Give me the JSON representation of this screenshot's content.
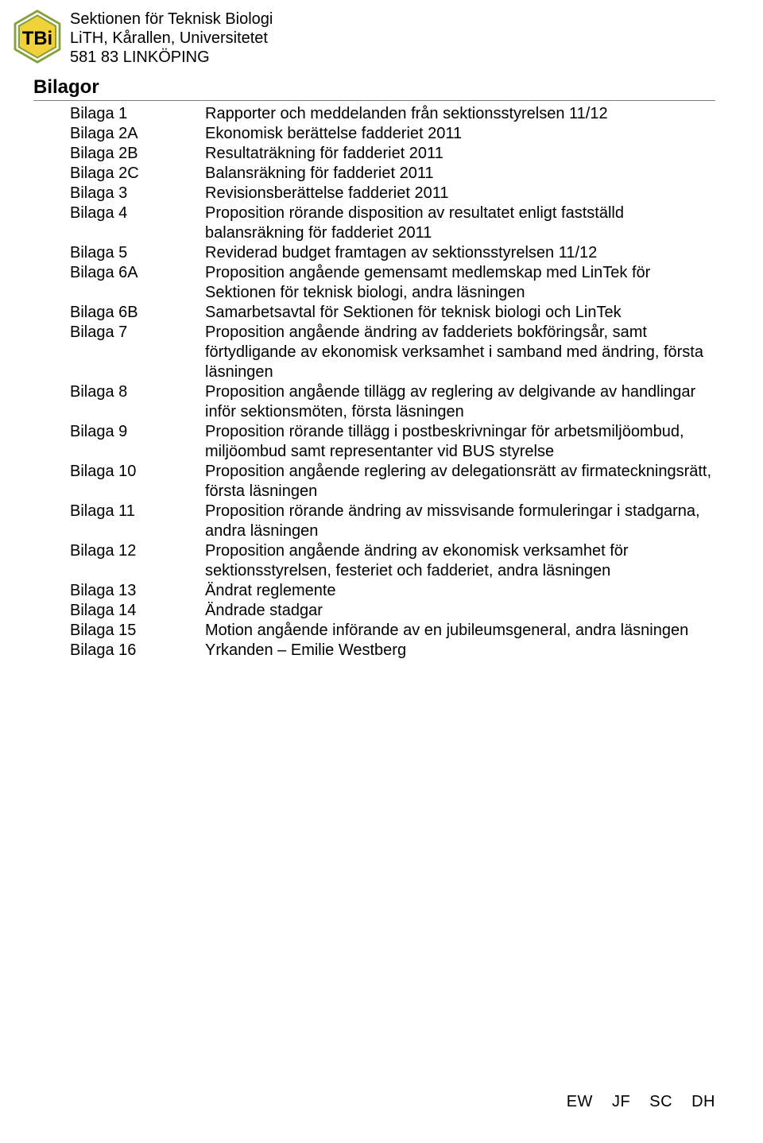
{
  "header": {
    "org_lines": [
      "Sektionen för Teknisk Biologi",
      "LiTH, Kårallen, Universitetet",
      "581 83 LINKÖPING"
    ],
    "logo": {
      "outer_stroke": "#85a03a",
      "hex_fill": "#f2d23a",
      "hex_stroke": "#85a03a",
      "letters_fill": "#000000",
      "background": "#ffffff"
    }
  },
  "section_title": "Bilagor",
  "items": [
    {
      "label": "Bilaga 1",
      "desc": "Rapporter och meddelanden från sektionsstyrelsen 11/12",
      "desc_bold": false
    },
    {
      "label": "Bilaga 2A",
      "desc": "Ekonomisk berättelse fadderiet 2011",
      "desc_bold": false
    },
    {
      "label": "Bilaga 2B",
      "desc": "Resultaträkning för fadderiet 2011",
      "desc_bold": false
    },
    {
      "label": "Bilaga 2C",
      "desc": "Balansräkning för fadderiet 2011",
      "desc_bold": false
    },
    {
      "label": "Bilaga 3",
      "desc": "Revisionsberättelse fadderiet 2011",
      "desc_bold": false
    },
    {
      "label": "Bilaga 4",
      "desc": "Proposition rörande disposition av resultatet enligt fastställd balansräkning för fadderiet 2011",
      "desc_bold": false
    },
    {
      "label": "Bilaga 5",
      "desc": "Reviderad budget framtagen av sektionsstyrelsen 11/12",
      "desc_bold": false
    },
    {
      "label": "Bilaga 6A",
      "desc": "Proposition angående gemensamt medlemskap med LinTek för Sektionen för teknisk biologi, andra läsningen",
      "desc_bold": false
    },
    {
      "label": "Bilaga 6B",
      "desc": "Samarbetsavtal för Sektionen för teknisk biologi och LinTek",
      "desc_bold": false
    },
    {
      "label": "Bilaga 7",
      "desc": "Proposition angående ändring av fadderiets bokföringsår, samt förtydligande av ekonomisk verksamhet i samband med ändring, första läsningen",
      "desc_bold": false
    },
    {
      "label": "Bilaga 8",
      "desc": "Proposition angående tillägg av reglering av delgivande av handlingar inför sektionsmöten, första läsningen",
      "desc_bold": false
    },
    {
      "label": "Bilaga 9",
      "desc": "Proposition rörande tillägg i postbeskrivningar för arbetsmiljöombud, miljöombud samt representanter vid BUS styrelse",
      "desc_bold": false
    },
    {
      "label": "Bilaga 10",
      "desc": "Proposition angående reglering av delegationsrätt av firmateckningsrätt, första läsningen",
      "desc_bold": false
    },
    {
      "label": "Bilaga 11",
      "desc": "Proposition rörande ändring av missvisande formuleringar i stadgarna, andra läsningen",
      "desc_bold": false
    },
    {
      "label": "Bilaga 12",
      "desc": "Proposition angående ändring av ekonomisk verksamhet för sektionsstyrelsen, festeriet och fadderiet, andra läsningen",
      "desc_bold": false
    },
    {
      "label": "Bilaga 13",
      "desc": "Ändrat reglemente",
      "desc_bold": false
    },
    {
      "label": "Bilaga 14",
      "desc": "Ändrade stadgar",
      "desc_bold": false
    },
    {
      "label": "Bilaga 15",
      "desc": "Motion angående införande av en jubileumsgeneral, andra läsningen",
      "desc_bold": false
    },
    {
      "label": "Bilaga 16",
      "desc": "Yrkanden – Emilie Westberg",
      "desc_bold": false
    }
  ],
  "footer_initials": [
    "EW",
    "JF",
    "SC",
    "DH"
  ],
  "colors": {
    "text": "#000000",
    "background": "#ffffff",
    "rule": "#7f7f7f"
  }
}
